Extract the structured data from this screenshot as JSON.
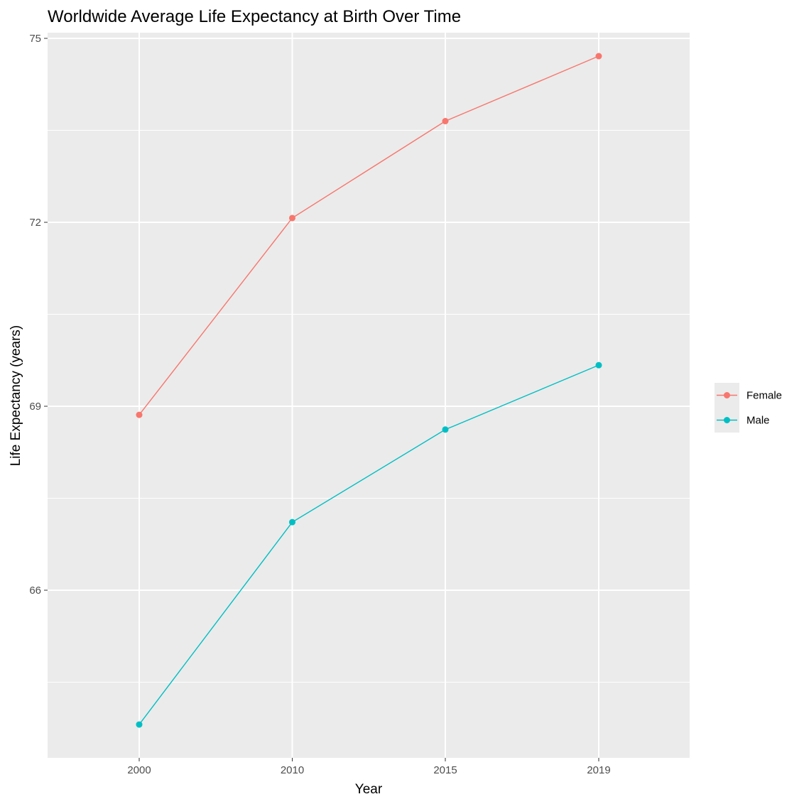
{
  "chart_data": {
    "type": "line",
    "title": "Worldwide Average Life Expectancy at Birth Over Time",
    "xlabel": "Year",
    "ylabel": "Life Expectancy (years)",
    "categories": [
      "2000",
      "2010",
      "2015",
      "2019"
    ],
    "y_ticks": [
      66,
      69,
      72,
      75
    ],
    "ylim": [
      63.8,
      75.1
    ],
    "grid": true,
    "legend_position": "right",
    "series": [
      {
        "name": "Female",
        "color": "#F8766D",
        "values": [
          68.86,
          72.07,
          73.65,
          74.71
        ]
      },
      {
        "name": "Male",
        "color": "#00BFC4",
        "values": [
          63.81,
          67.11,
          68.62,
          69.67
        ]
      }
    ]
  }
}
